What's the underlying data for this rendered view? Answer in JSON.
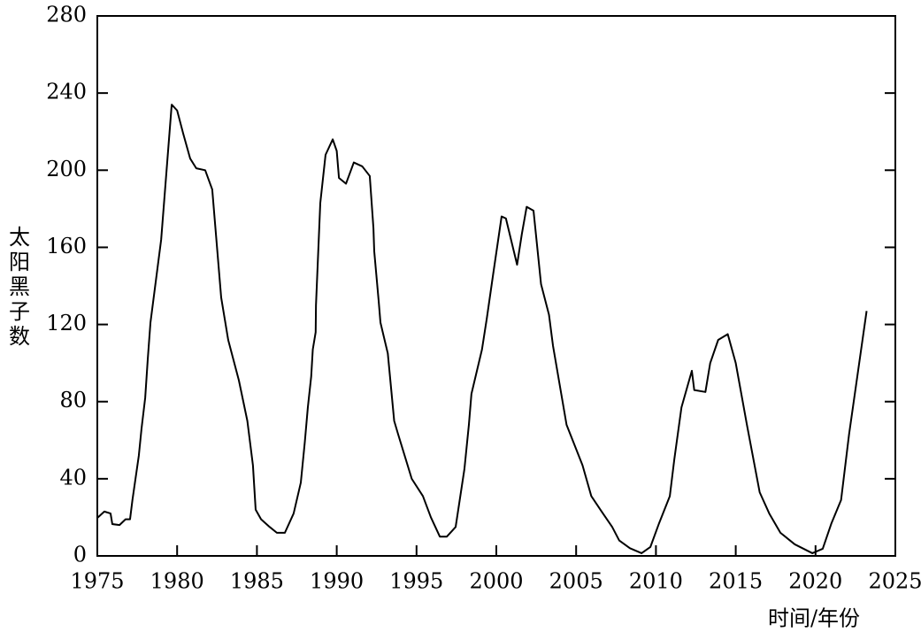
{
  "chart_data": {
    "type": "line",
    "ylabel": "太阳黑子数",
    "xlabel": "时间/年份",
    "xlim": [
      1975,
      2025
    ],
    "xticks": [
      1975,
      1980,
      1985,
      1990,
      1995,
      2000,
      2005,
      2010,
      2015,
      2020,
      2025
    ],
    "ylim": [
      0,
      280
    ],
    "yticks": [
      0,
      40,
      80,
      120,
      160,
      200,
      240,
      280
    ],
    "color": "#000000",
    "x": [
      1975.0,
      1975.44,
      1975.83,
      1975.94,
      1976.39,
      1976.77,
      1977.05,
      1977.2,
      1977.6,
      1977.77,
      1978.0,
      1978.16,
      1978.33,
      1979.0,
      1979.66,
      1980.0,
      1980.38,
      1980.82,
      1981.2,
      1981.76,
      1982.2,
      1982.76,
      1983.2,
      1983.87,
      1984.4,
      1984.75,
      1984.92,
      1985.26,
      1985.8,
      1986.25,
      1986.75,
      1987.3,
      1987.75,
      1988.0,
      1988.19,
      1988.4,
      1988.5,
      1988.68,
      1988.7,
      1988.97,
      1989.3,
      1989.75,
      1990.0,
      1990.14,
      1990.58,
      1991.07,
      1991.6,
      1992.07,
      1992.3,
      1992.35,
      1992.63,
      1992.74,
      1993.2,
      1993.6,
      1993.85,
      1994.7,
      1995.4,
      1995.9,
      1996.46,
      1996.9,
      1997.45,
      1997.67,
      1998.0,
      1998.28,
      1998.44,
      1999.1,
      1999.4,
      1999.8,
      2000.33,
      2000.6,
      2001.3,
      2001.6,
      2001.9,
      2002.33,
      2002.8,
      2003.3,
      2003.55,
      2004.4,
      2005.4,
      2005.95,
      2006.6,
      2007.26,
      2007.7,
      2008.37,
      2009.1,
      2009.65,
      2010.2,
      2010.87,
      2011.15,
      2011.6,
      2012.25,
      2012.4,
      2013.1,
      2013.4,
      2013.9,
      2014.5,
      2015.0,
      2015.7,
      2016.5,
      2017.1,
      2017.8,
      2018.7,
      2019.8,
      2020.45,
      2021.0,
      2021.6,
      2022.1,
      2023.2
    ],
    "values": [
      19.7,
      23,
      22,
      16.5,
      16,
      19,
      19,
      29,
      52,
      66,
      82,
      102,
      121,
      164,
      234,
      231,
      219,
      206,
      201,
      200,
      190,
      134,
      112,
      91,
      70,
      47,
      24,
      19,
      15,
      12,
      12,
      22,
      38,
      59,
      77,
      93,
      107,
      116,
      130,
      183,
      208,
      216,
      210,
      196,
      193,
      204,
      202,
      197,
      170,
      158,
      132,
      121,
      105,
      70,
      63,
      40,
      31,
      20,
      10,
      10,
      15,
      27,
      45,
      68,
      84,
      107,
      123,
      146,
      176,
      175,
      151,
      167,
      181,
      179,
      141,
      125,
      109,
      68,
      47,
      31,
      23,
      15,
      8,
      4,
      1.4,
      4.6,
      17,
      31,
      50,
      77,
      96,
      86,
      85,
      100,
      112,
      115,
      100,
      68,
      33,
      22,
      12,
      6,
      1.4,
      3.7,
      17,
      29,
      63,
      127
    ]
  }
}
